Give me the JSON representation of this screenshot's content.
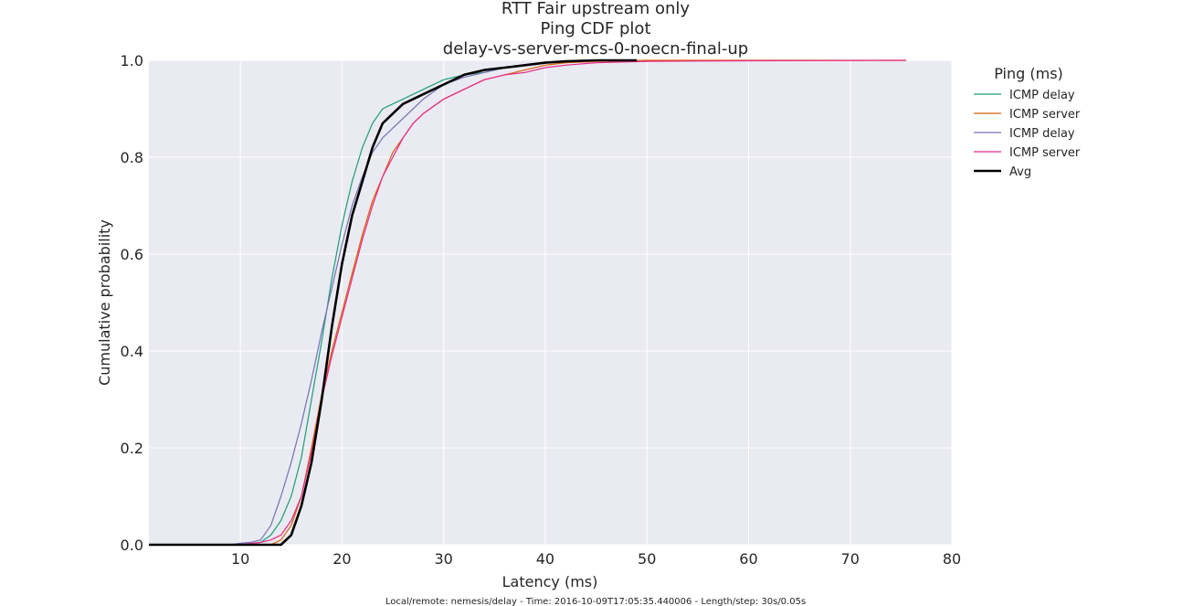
{
  "chart_data": {
    "type": "line",
    "title_lines": [
      "RTT Fair upstream only",
      "Ping CDF plot",
      "delay-vs-server-mcs-0-noecn-final-up"
    ],
    "xlabel": "Latency (ms)",
    "ylabel": "Cumulative probability",
    "xlim": [
      1,
      80
    ],
    "ylim": [
      0,
      1.0
    ],
    "x_ticks": [
      10,
      20,
      30,
      40,
      50,
      60,
      70,
      80
    ],
    "y_ticks": [
      0.0,
      0.2,
      0.4,
      0.6,
      0.8,
      1.0
    ],
    "y_tick_labels": [
      "0.0",
      "0.2",
      "0.4",
      "0.6",
      "0.8",
      "1.0"
    ],
    "grid": true,
    "legend_placement": "right-outside",
    "legend_title": "Ping (ms)",
    "background_color": "#eaeaf2",
    "series": [
      {
        "name": "ICMP delay",
        "color": "#1b9e77",
        "x": [
          1,
          10,
          12,
          13,
          14,
          15,
          16,
          17,
          18,
          19,
          20,
          21,
          22,
          23,
          24,
          25,
          26,
          28,
          30,
          32,
          34,
          36,
          38,
          40,
          42,
          45,
          49
        ],
        "y": [
          0,
          0,
          0.005,
          0.02,
          0.05,
          0.1,
          0.18,
          0.3,
          0.42,
          0.55,
          0.66,
          0.75,
          0.82,
          0.87,
          0.9,
          0.91,
          0.92,
          0.94,
          0.96,
          0.97,
          0.975,
          0.985,
          0.99,
          0.995,
          0.998,
          1.0,
          1.0
        ]
      },
      {
        "name": "ICMP server",
        "color": "#d95f02",
        "x": [
          1,
          13,
          14,
          15,
          16,
          17,
          18,
          19,
          20,
          21,
          22,
          23,
          24,
          25,
          26,
          27,
          28,
          30,
          32,
          34,
          36,
          38,
          40,
          42,
          45,
          50,
          60,
          75.5
        ],
        "y": [
          0,
          0,
          0.01,
          0.04,
          0.1,
          0.2,
          0.31,
          0.4,
          0.48,
          0.56,
          0.64,
          0.71,
          0.76,
          0.81,
          0.84,
          0.87,
          0.89,
          0.92,
          0.94,
          0.96,
          0.97,
          0.98,
          0.99,
          0.995,
          0.998,
          1.0,
          1.0,
          1.0
        ]
      },
      {
        "name": "ICMP delay",
        "color": "#7570b3",
        "x": [
          1,
          9,
          10,
          11,
          12,
          13,
          14,
          15,
          16,
          17,
          18,
          19,
          20,
          21,
          22,
          23,
          24,
          25,
          26,
          28,
          30,
          32,
          34,
          36,
          38,
          40,
          42,
          45,
          49
        ],
        "y": [
          0,
          0,
          0.003,
          0.005,
          0.01,
          0.04,
          0.1,
          0.17,
          0.25,
          0.34,
          0.44,
          0.53,
          0.62,
          0.7,
          0.76,
          0.81,
          0.84,
          0.86,
          0.88,
          0.92,
          0.95,
          0.965,
          0.975,
          0.985,
          0.99,
          0.995,
          0.998,
          1.0,
          1.0
        ]
      },
      {
        "name": "ICMP server",
        "color": "#e7298a",
        "x": [
          1,
          10,
          12,
          13,
          14,
          15,
          16,
          17,
          18,
          19,
          20,
          21,
          22,
          23,
          24,
          25,
          26,
          27,
          28,
          30,
          32,
          34,
          36,
          38,
          40,
          42,
          45,
          50,
          60,
          75.5
        ],
        "y": [
          0,
          0,
          0.005,
          0.01,
          0.02,
          0.05,
          0.1,
          0.19,
          0.3,
          0.39,
          0.47,
          0.55,
          0.63,
          0.7,
          0.76,
          0.8,
          0.84,
          0.87,
          0.89,
          0.92,
          0.94,
          0.96,
          0.97,
          0.975,
          0.985,
          0.99,
          0.995,
          0.998,
          0.999,
          1.0
        ]
      },
      {
        "name": "Avg",
        "color": "#000000",
        "x": [
          1,
          14,
          15,
          16,
          17,
          18,
          19,
          20,
          21,
          22,
          23,
          24,
          25,
          26,
          27,
          28,
          29,
          30,
          32,
          34,
          36,
          38,
          40,
          42,
          45,
          49
        ],
        "y": [
          0,
          0,
          0.02,
          0.08,
          0.17,
          0.3,
          0.45,
          0.58,
          0.68,
          0.75,
          0.82,
          0.87,
          0.89,
          0.91,
          0.92,
          0.93,
          0.94,
          0.95,
          0.97,
          0.98,
          0.985,
          0.99,
          0.995,
          0.998,
          1.0,
          1.0
        ]
      }
    ],
    "footer": "Local/remote: nemesis/delay - Time: 2016-10-09T17:05:35.440006 - Length/step: 30s/0.05s"
  }
}
